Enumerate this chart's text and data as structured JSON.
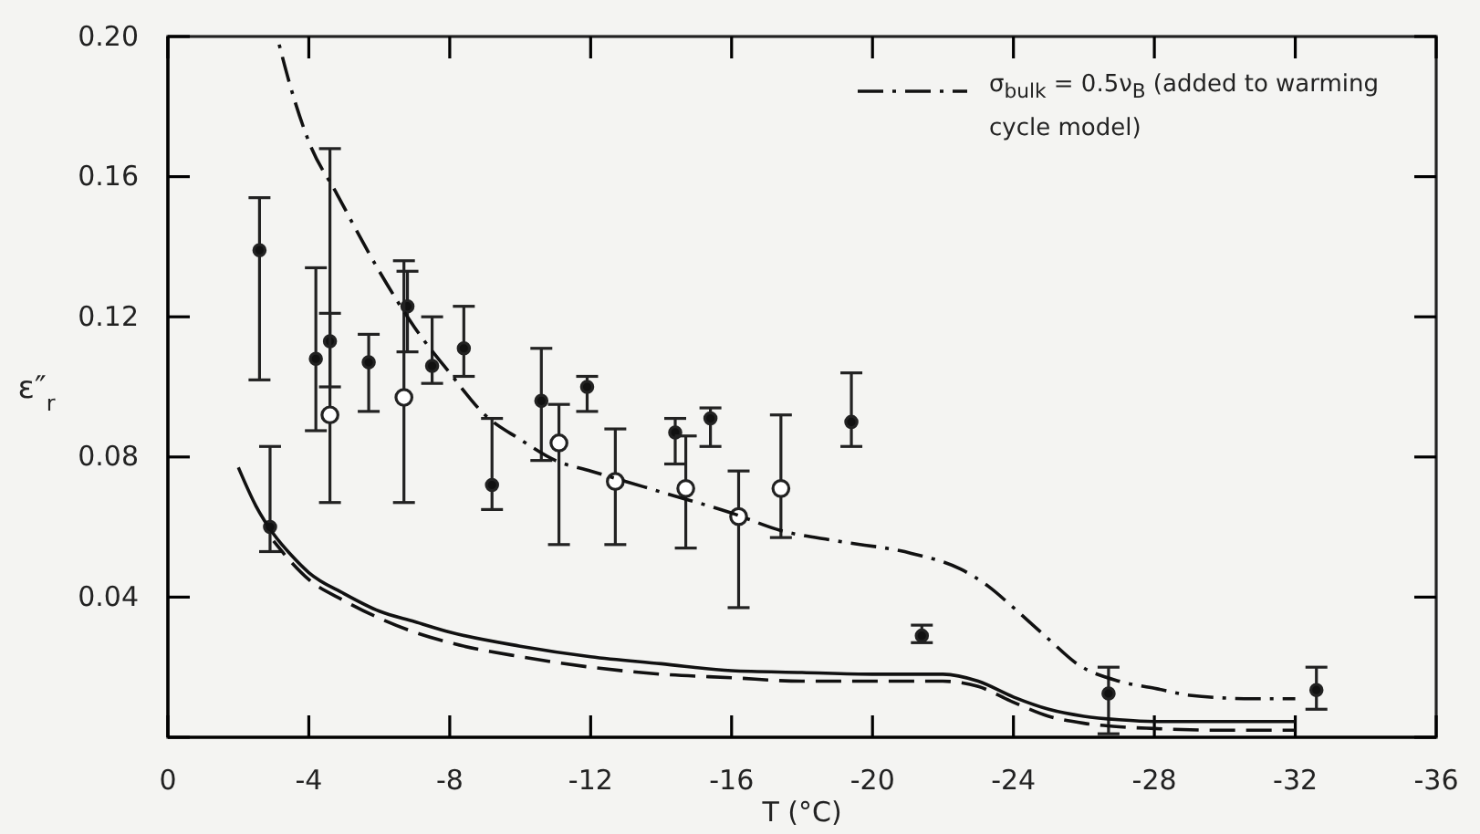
{
  "chart_data": {
    "type": "scatter",
    "xlabel": "T (°C)",
    "ylabel": "ε″$_{r}$",
    "xlim": [
      0,
      -36
    ],
    "xticks": [
      {
        "value": 0,
        "label": "0"
      },
      -4,
      -8,
      -12,
      -16,
      -20,
      -24,
      -28,
      -32,
      -36
    ],
    "ylim": [
      0,
      0.2
    ],
    "yticks": [
      {
        "value": 0,
        "label": null
      },
      0.04,
      0.08,
      0.12,
      0.16,
      {
        "value": 0.2,
        "label": "0.20"
      }
    ],
    "legend": "top right",
    "series": [
      {
        "marker": "circle",
        "color": "#111111",
        "x": [
          -2.6,
          -2.9,
          -4.2,
          -4.6,
          -5.7,
          -6.8,
          -7.5,
          -8.4,
          -9.2,
          -10.6,
          -11.9,
          -14.4,
          -15.4,
          -19.4,
          -21.4,
          -26.7,
          -32.6
        ],
        "values": [
          0.139,
          0.06,
          0.108,
          0.113,
          0.107,
          0.123,
          0.106,
          0.111,
          0.072,
          0.096,
          0.1,
          0.087,
          0.091,
          0.09,
          0.029,
          0.0125,
          0.0135
        ],
        "errors": [
          [
            0.102,
            0.154
          ],
          [
            0.053,
            0.083
          ],
          [
            0.0875,
            0.134
          ],
          [
            0.1,
            0.121
          ],
          [
            0.093,
            0.115
          ],
          [
            0.11,
            0.133
          ],
          [
            0.101,
            0.12
          ],
          [
            0.103,
            0.123
          ],
          [
            0.065,
            0.091
          ],
          [
            0.079,
            0.111
          ],
          [
            0.093,
            0.103
          ],
          [
            0.078,
            0.091
          ],
          [
            0.083,
            0.094
          ],
          [
            0.083,
            0.104
          ],
          [
            0.027,
            0.032
          ],
          [
            0.001,
            0.02
          ],
          [
            0.008,
            0.02
          ]
        ]
      },
      {
        "marker": "circle",
        "color": "#ffffff",
        "x": [
          -4.6,
          -6.7,
          -11.1,
          -12.7,
          -14.7,
          -16.2,
          -17.4
        ],
        "values": [
          0.092,
          0.097,
          0.084,
          0.073,
          0.071,
          0.063,
          0.071
        ],
        "errors": [
          [
            0.067,
            0.168
          ],
          [
            0.067,
            0.136
          ],
          [
            0.055,
            0.095
          ],
          [
            0.055,
            0.088
          ],
          [
            0.054,
            0.086
          ],
          [
            0.037,
            0.076
          ],
          [
            0.057,
            0.092
          ]
        ]
      },
      {
        "type": "line",
        "line_style": "solid",
        "color": "#111111",
        "x": [
          -2.0,
          -2.5,
          -3,
          -3.5,
          -4,
          -5,
          -6,
          -7,
          -8,
          -10,
          -12,
          -14,
          -16,
          -18,
          -20,
          -22,
          -23,
          -24,
          -25,
          -26,
          -27,
          -28,
          -30,
          -32
        ],
        "values": [
          0.077,
          0.066,
          0.058,
          0.052,
          0.047,
          0.041,
          0.036,
          0.033,
          0.03,
          0.026,
          0.023,
          0.021,
          0.019,
          0.0185,
          0.018,
          0.018,
          0.016,
          0.0115,
          0.008,
          0.006,
          0.005,
          0.0045,
          0.0045,
          0.0045
        ]
      },
      {
        "type": "line",
        "line_style": "dashed",
        "color": "#111111",
        "x": [
          -3,
          -3.5,
          -4,
          -5,
          -6,
          -7,
          -8,
          -10,
          -12,
          -14,
          -16,
          -18,
          -20,
          -22,
          -23,
          -24,
          -25,
          -26,
          -27,
          -28,
          -30,
          -32
        ],
        "values": [
          0.056,
          0.05,
          0.045,
          0.039,
          0.034,
          0.03,
          0.027,
          0.023,
          0.02,
          0.018,
          0.017,
          0.016,
          0.016,
          0.016,
          0.0145,
          0.01,
          0.006,
          0.004,
          0.003,
          0.0025,
          0.002,
          0.002
        ]
      },
      {
        "type": "line",
        "line_style": "dashdot",
        "color": "#111111",
        "name": "σ$_{bulk}$ = 0.5ν$_{B}$  (added to warming cycle model)",
        "x": [
          -3.1,
          -3.5,
          -4,
          -4.8,
          -6,
          -7,
          -8,
          -9,
          -10,
          -11,
          -12,
          -13,
          -14,
          -16,
          -17.4,
          -19,
          -21.1,
          -22.5,
          -23.3,
          -24,
          -25,
          -25.8,
          -27,
          -28,
          -29,
          -30.8,
          -32
        ],
        "values": [
          0.2,
          0.185,
          0.17,
          0.155,
          0.133,
          0.117,
          0.104,
          0.092,
          0.085,
          0.079,
          0.076,
          0.073,
          0.07,
          0.064,
          0.059,
          0.056,
          0.0525,
          0.048,
          0.043,
          0.037,
          0.028,
          0.021,
          0.016,
          0.014,
          0.012,
          0.011,
          0.011
        ]
      }
    ]
  }
}
